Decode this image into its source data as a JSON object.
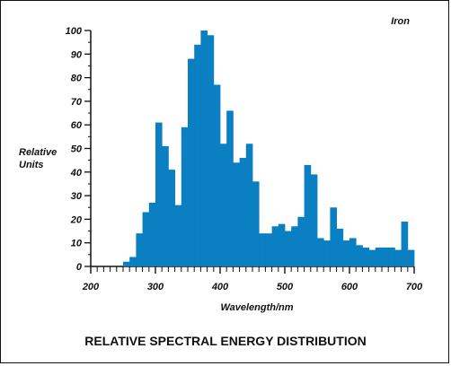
{
  "chart_data": {
    "type": "bar",
    "title": "RELATIVE SPECTRAL ENERGY DISTRIBUTION",
    "xlabel": "Wavelength/nm",
    "ylabel": "Relative Units",
    "corner_label": "Iron",
    "xlim": [
      200,
      700
    ],
    "ylim": [
      0,
      100
    ],
    "xticks": [
      200,
      300,
      400,
      500,
      600,
      700
    ],
    "yticks": [
      0,
      10,
      20,
      30,
      40,
      50,
      60,
      70,
      80,
      90,
      100
    ],
    "bar_color": "#0a7fc2",
    "bin_width_nm": 10,
    "x": [
      250,
      260,
      270,
      280,
      290,
      300,
      310,
      320,
      330,
      340,
      350,
      360,
      370,
      380,
      390,
      400,
      410,
      420,
      430,
      440,
      450,
      460,
      470,
      480,
      490,
      500,
      510,
      520,
      530,
      540,
      550,
      560,
      570,
      580,
      590,
      600,
      610,
      620,
      630,
      640,
      650,
      660,
      670,
      680,
      690
    ],
    "values": [
      2,
      4,
      14,
      23,
      27,
      61,
      51,
      41,
      26,
      59,
      88,
      94,
      100,
      98,
      77,
      52,
      66,
      44,
      46,
      52,
      36,
      14,
      14,
      17,
      18,
      15,
      17,
      21,
      43,
      39,
      12,
      11,
      25,
      16,
      11,
      12,
      9,
      8,
      7,
      8,
      8,
      8,
      7,
      19,
      7
    ]
  }
}
